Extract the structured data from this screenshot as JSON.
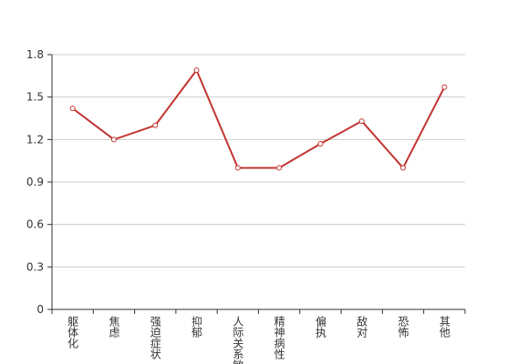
{
  "chart_data": {
    "type": "line",
    "categories": [
      "躯体化",
      "焦虑",
      "强迫症状",
      "抑郁",
      "人际关系敏感",
      "精神病性",
      "偏执",
      "敌对",
      "恐怖",
      "其他"
    ],
    "series": [
      {
        "color": "#c23531",
        "values": [
          1.42,
          1.2,
          1.3,
          1.69,
          1.0,
          1.0,
          1.17,
          1.33,
          1.0,
          1.57
        ]
      }
    ],
    "ylim": [
      0,
      1.8
    ],
    "yticks": [
      0,
      0.3,
      0.6,
      0.9,
      1.2,
      1.5,
      1.8
    ],
    "grid": true
  }
}
